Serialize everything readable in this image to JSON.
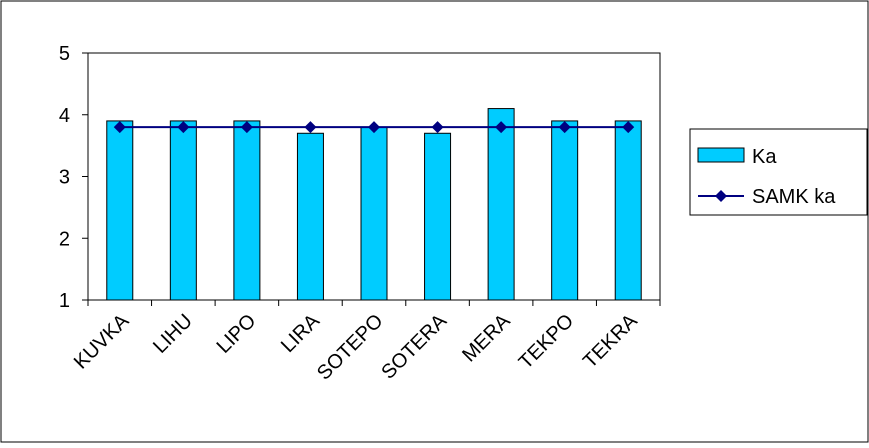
{
  "chart_data": {
    "type": "bar",
    "categories": [
      "KUVKA",
      "LIHU",
      "LIPO",
      "LIRA",
      "SOTEPO",
      "SOTERA",
      "MERA",
      "TEKPO",
      "TEKRA"
    ],
    "series": [
      {
        "name": "Ka",
        "kind": "bar",
        "color": "#00ccff",
        "values": [
          3.9,
          3.9,
          3.9,
          3.7,
          3.8,
          3.7,
          4.1,
          3.9,
          3.9
        ]
      },
      {
        "name": "SAMK ka",
        "kind": "line",
        "color": "#000080",
        "marker": "diamond",
        "values": [
          3.8,
          3.8,
          3.8,
          3.8,
          3.8,
          3.8,
          3.8,
          3.8,
          3.8
        ]
      }
    ],
    "yticks": [
      "1",
      "2",
      "3",
      "4",
      "5"
    ],
    "ylim": [
      1,
      5
    ],
    "grid": false,
    "legend": "right"
  }
}
